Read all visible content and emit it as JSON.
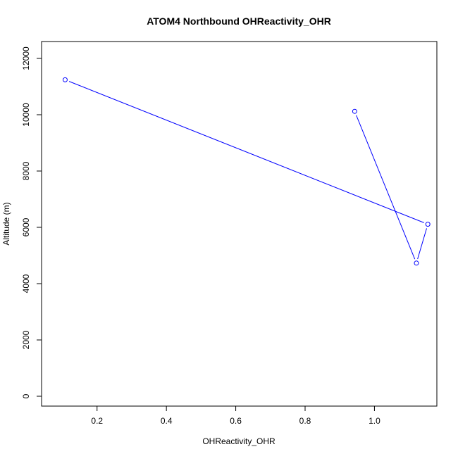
{
  "chart_data": {
    "type": "line",
    "title": "ATOM4 Northbound OHReactivity_OHR",
    "xlabel": "OHReactivity_OHR",
    "ylabel": "Altitude (m)",
    "xlim": [
      0.04,
      1.18
    ],
    "ylim": [
      -350,
      12600
    ],
    "x_ticks": [
      "0.2",
      "0.4",
      "0.6",
      "0.8",
      "1.0"
    ],
    "x_tick_values": [
      0.2,
      0.4,
      0.6,
      0.8,
      1.0
    ],
    "y_ticks": [
      "0",
      "2000",
      "4000",
      "6000",
      "8000",
      "10000",
      "12000"
    ],
    "y_tick_values": [
      0,
      2000,
      4000,
      6000,
      8000,
      10000,
      12000
    ],
    "grid": false,
    "series": [
      {
        "color": "#0000ff",
        "marker": "open-circle",
        "points": [
          {
            "x": 0.943,
            "y": 10120
          },
          {
            "x": 1.121,
            "y": 4730
          },
          {
            "x": 1.154,
            "y": 6110
          },
          {
            "x": 0.108,
            "y": 11240
          }
        ]
      }
    ]
  }
}
